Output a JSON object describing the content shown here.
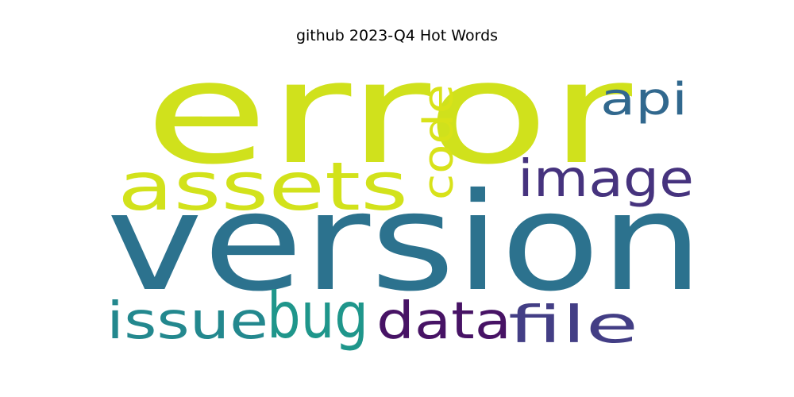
{
  "title": "github 2023-Q4 Hot Words",
  "words": {
    "error": {
      "text": "error",
      "color": "#d0e11c"
    },
    "version": {
      "text": "version",
      "color": "#2c728e"
    },
    "assets": {
      "text": "assets",
      "color": "#d2e21b"
    },
    "code": {
      "text": "code",
      "color": "#d8e219"
    },
    "api": {
      "text": "api",
      "color": "#31688e"
    },
    "image": {
      "text": "image",
      "color": "#46337e"
    },
    "issue": {
      "text": "issue",
      "color": "#23888e"
    },
    "bug": {
      "text": "bug",
      "color": "#1f968b"
    },
    "data": {
      "text": "data",
      "color": "#471365"
    },
    "file": {
      "text": "file",
      "color": "#433e85"
    }
  }
}
